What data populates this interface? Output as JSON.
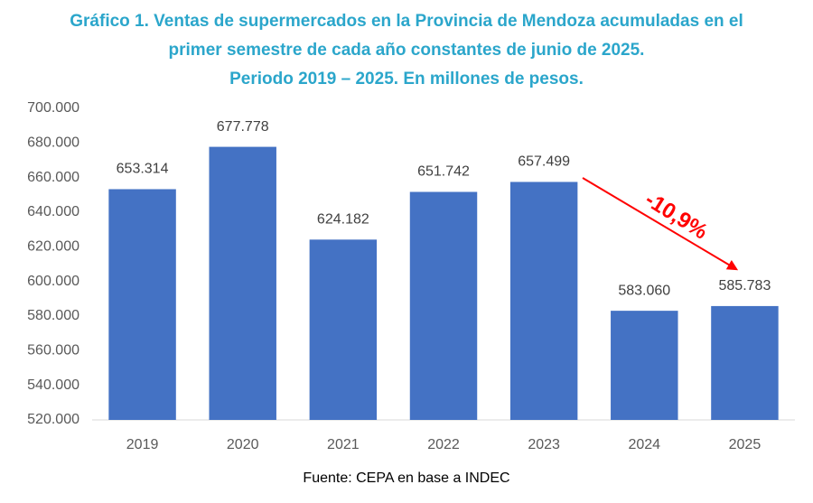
{
  "chart_data": {
    "type": "bar",
    "title": [
      "Gráfico 1. Ventas de supermercados en la Provincia de Mendoza acumuladas en el",
      "primer semestre de cada año constantes de junio de 2025.",
      "Periodo 2019 – 2025. En millones de pesos."
    ],
    "categories": [
      "2019",
      "2020",
      "2021",
      "2022",
      "2023",
      "2024",
      "2025"
    ],
    "values": [
      653314,
      677778,
      624182,
      651742,
      657499,
      583060,
      585783
    ],
    "value_labels": [
      "653.314",
      "677.778",
      "624.182",
      "651.742",
      "657.499",
      "583.060",
      "585.783"
    ],
    "color": "#4472c4",
    "ylim": [
      520000,
      700000
    ],
    "yticks": [
      {
        "value": 520000,
        "label": "520.000"
      },
      {
        "value": 540000,
        "label": "540.000"
      },
      {
        "value": 560000,
        "label": "560.000"
      },
      {
        "value": 580000,
        "label": "580.000"
      },
      {
        "value": 600000,
        "label": "600.000"
      },
      {
        "value": 620000,
        "label": "620.000"
      },
      {
        "value": 640000,
        "label": "640.000"
      },
      {
        "value": 660000,
        "label": "660.000"
      },
      {
        "value": 680000,
        "label": "680.000"
      },
      {
        "value": 700000,
        "label": "700.000"
      }
    ],
    "grid": false,
    "annotation": "-10,9%",
    "source": "Fuente: CEPA en base a INDEC"
  }
}
